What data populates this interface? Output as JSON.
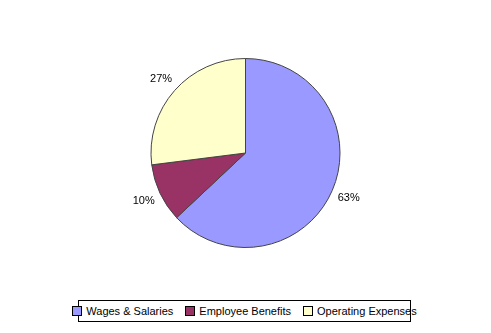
{
  "chart_data": {
    "type": "pie",
    "categories": [
      "Wages & Salaries",
      "Employee Benefits",
      "Operating Expenses"
    ],
    "values": [
      63,
      10,
      27
    ],
    "value_labels": [
      "63%",
      "10%",
      "27%"
    ],
    "colors": [
      "#9999ff",
      "#993366",
      "#ffffcc"
    ],
    "data_labels": true,
    "legend": "bottom"
  }
}
